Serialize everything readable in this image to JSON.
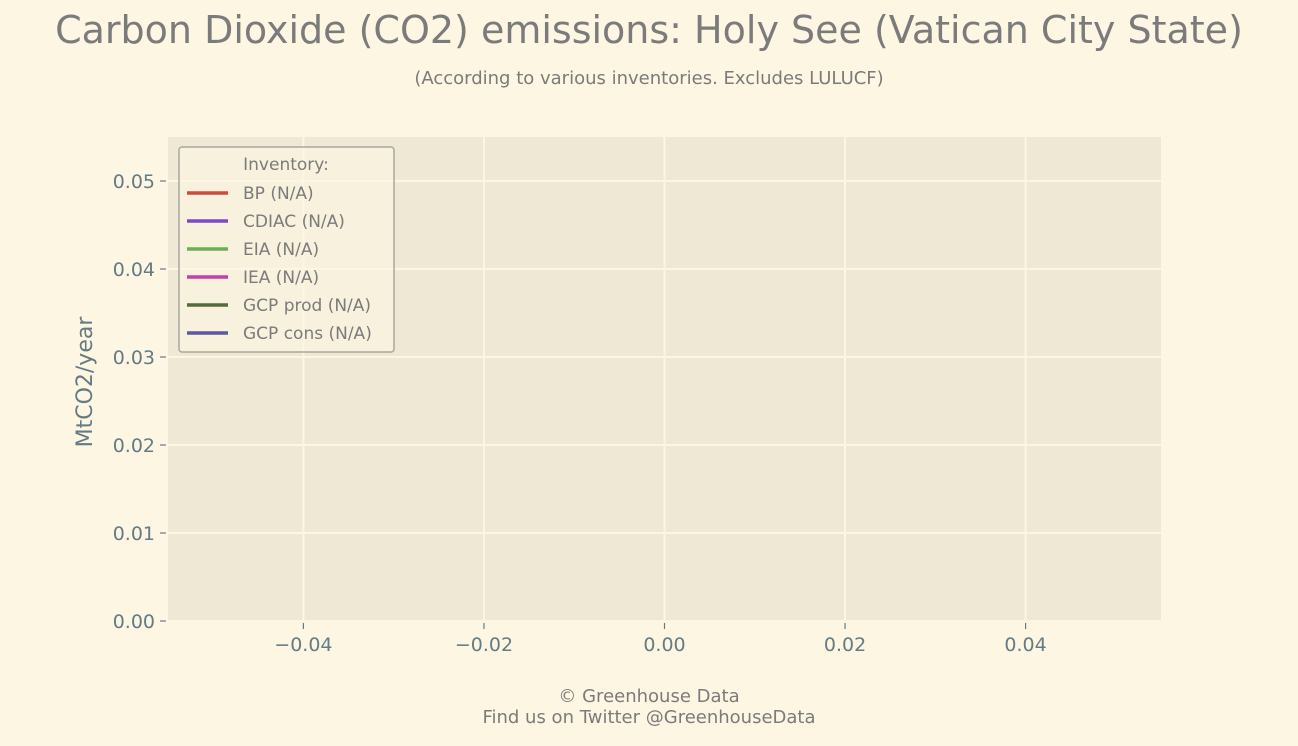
{
  "chart_data": {
    "type": "line",
    "title": "Carbon Dioxide (CO2) emissions: Holy See (Vatican City State)",
    "subtitle": "(According to various inventories. Excludes LULUCF)",
    "xlabel": "",
    "ylabel": "MtCO2/year",
    "xlim": [
      -0.055,
      0.055
    ],
    "ylim": [
      0,
      0.055
    ],
    "x_ticks": [
      "−0.04",
      "−0.02",
      "0.00",
      "0.02",
      "0.04"
    ],
    "x_tick_values": [
      -0.04,
      -0.02,
      0,
      0.02,
      0.04
    ],
    "y_ticks": [
      "0.00",
      "0.01",
      "0.02",
      "0.03",
      "0.04",
      "0.05"
    ],
    "y_tick_values": [
      0,
      0.01,
      0.02,
      0.03,
      0.04,
      0.05
    ],
    "grid": true,
    "legend_title": "Inventory:",
    "legend_position": "top-left",
    "series": [
      {
        "name": "BP (N/A)",
        "color": "#cc4b3e",
        "values": []
      },
      {
        "name": "CDIAC (N/A)",
        "color": "#7d49c9",
        "values": []
      },
      {
        "name": "EIA (N/A)",
        "color": "#6ab04c",
        "values": []
      },
      {
        "name": "IEA (N/A)",
        "color": "#c43fa6",
        "values": []
      },
      {
        "name": "GCP prod (N/A)",
        "color": "#556b3a",
        "values": []
      },
      {
        "name": "GCP cons (N/A)",
        "color": "#5a5a9c",
        "values": []
      }
    ]
  },
  "footer": {
    "line1": "© Greenhouse Data",
    "line2": "Find us on Twitter @GreenhouseData"
  }
}
